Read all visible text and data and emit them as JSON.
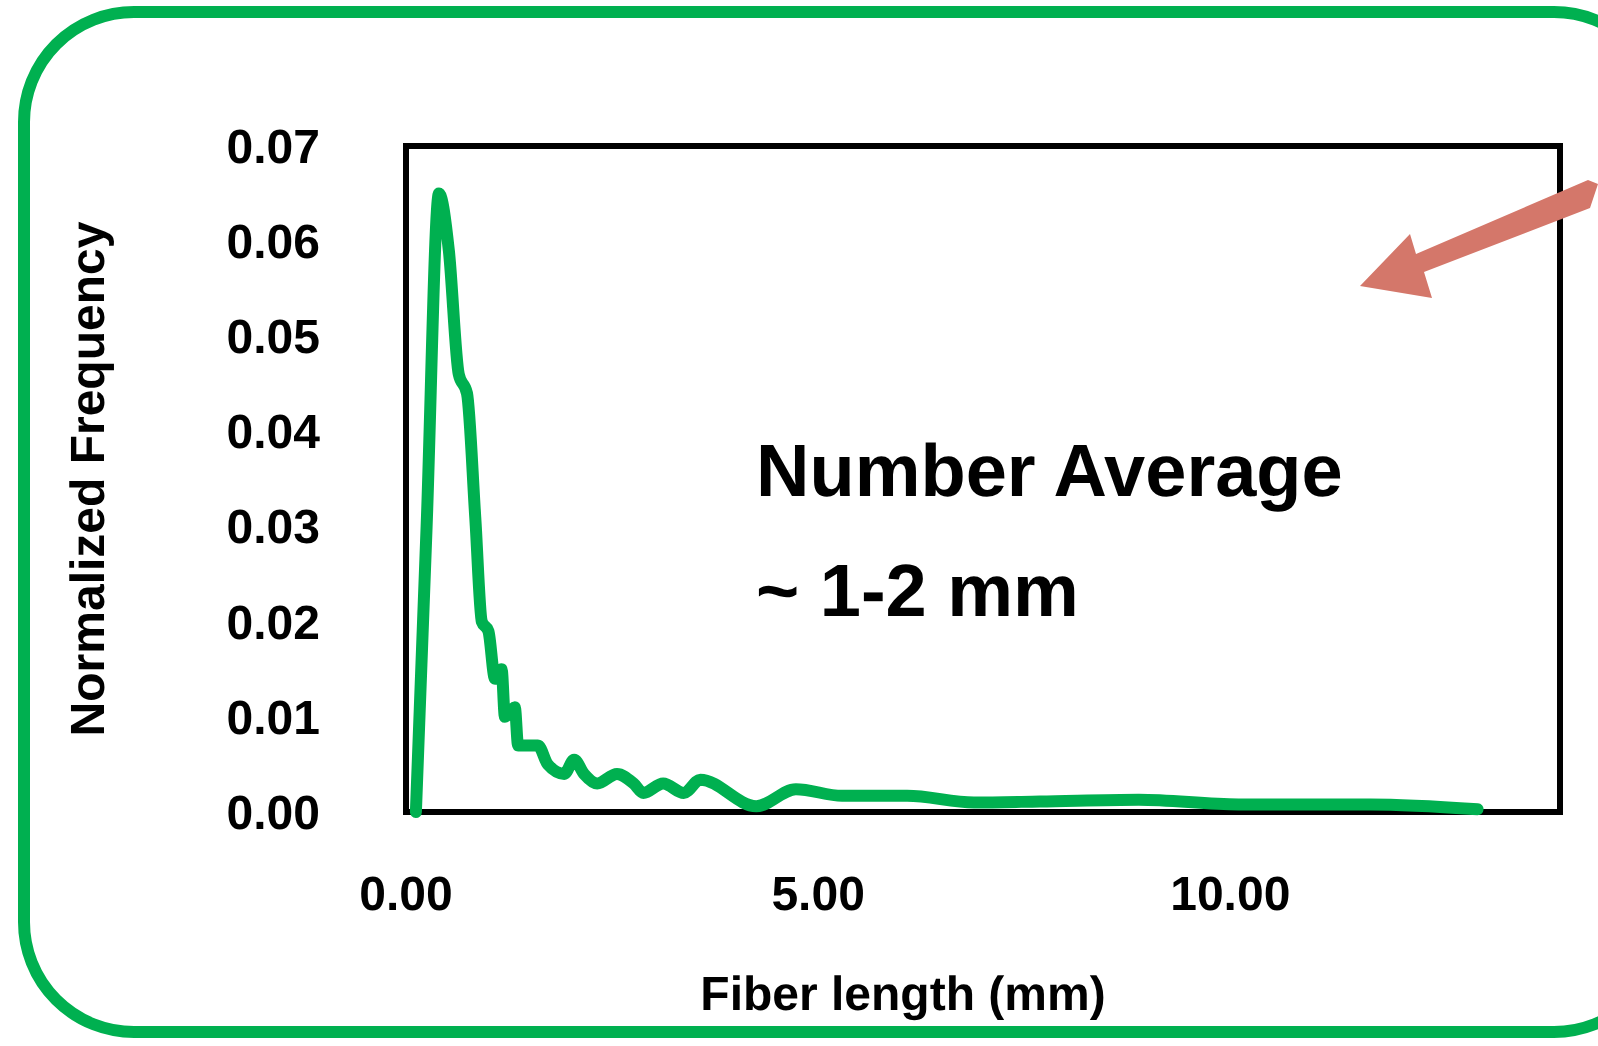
{
  "chart_data": {
    "type": "line",
    "xlabel": "Fiber length (mm)",
    "ylabel": "Normalized Frequency",
    "annotations": [
      "Number Average\n~ 1-2 mm"
    ],
    "xlim": [
      0,
      14
    ],
    "ylim": [
      0,
      0.07
    ],
    "xticks": [
      {
        "value": 0,
        "label": "0.00"
      },
      {
        "value": 5,
        "label": "5.00"
      },
      {
        "value": 10,
        "label": "10.00"
      }
    ],
    "yticks": [
      {
        "value": 0,
        "label": "0.00"
      },
      {
        "value": 0.01,
        "label": "0.01"
      },
      {
        "value": 0.02,
        "label": "0.02"
      },
      {
        "value": 0.03,
        "label": "0.03"
      },
      {
        "value": 0.04,
        "label": "0.04"
      },
      {
        "value": 0.05,
        "label": "0.05"
      },
      {
        "value": 0.06,
        "label": "0.06"
      },
      {
        "value": 0.07,
        "label": "0.07"
      }
    ],
    "grid": false,
    "marker": "none",
    "line_style": "solid",
    "series": [
      {
        "color": "#00b050",
        "x": [
          0.12,
          0.25,
          0.4,
          0.52,
          0.64,
          0.74,
          0.84,
          0.92,
          1.0,
          1.08,
          1.16,
          1.2,
          1.32,
          1.36,
          1.6,
          1.72,
          1.92,
          2.04,
          2.16,
          2.32,
          2.56,
          2.76,
          2.88,
          3.12,
          3.37,
          3.57,
          4.25,
          4.73,
          5.29,
          6.08,
          6.89,
          7.69,
          8.89,
          10.1,
          11.7,
          13.0
        ],
        "values": [
          0,
          0.03,
          0.065,
          0.059,
          0.046,
          0.044,
          0.031,
          0.02,
          0.019,
          0.014,
          0.015,
          0.01,
          0.011,
          0.007,
          0.007,
          0.005,
          0.004,
          0.0055,
          0.004,
          0.003,
          0.004,
          0.003,
          0.002,
          0.003,
          0.002,
          0.0034,
          0.0006,
          0.0024,
          0.0017,
          0.0017,
          0.001,
          0.0011,
          0.0013,
          0.0008,
          0.0008,
          0.0003
        ]
      }
    ]
  }
}
